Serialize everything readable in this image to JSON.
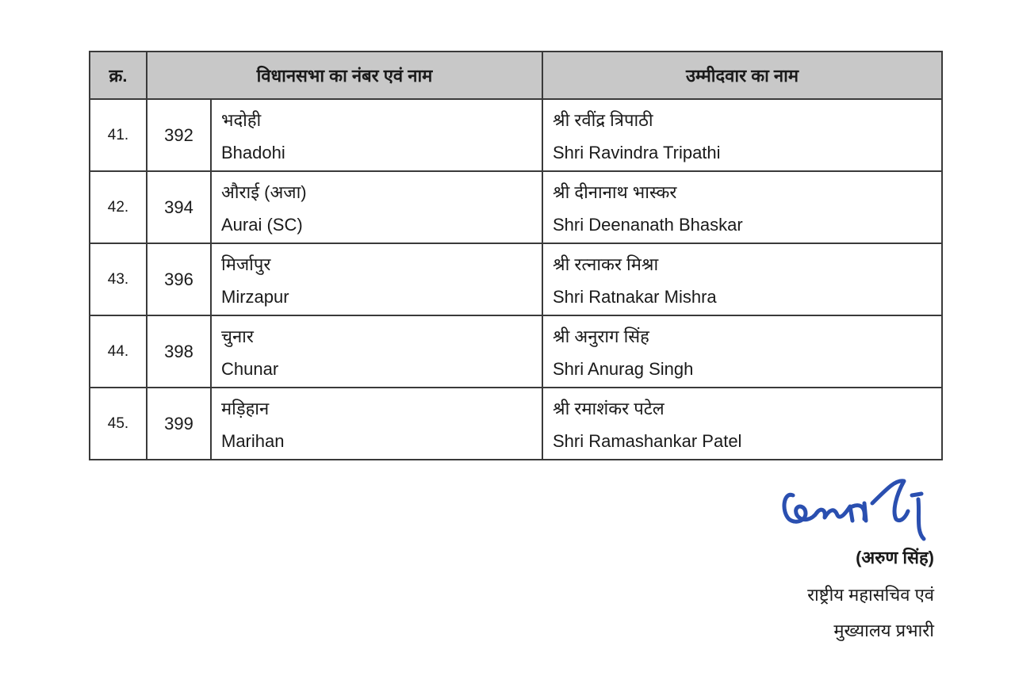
{
  "table": {
    "headers": [
      "क्र.",
      "विधानसभा का नंबर एवं नाम",
      "उम्मीदवार का नाम"
    ],
    "rows": [
      {
        "sn": "41.",
        "no": "392",
        "name_hi": "भदोही",
        "name_en": "Bhadohi",
        "cand_hi": "श्री रवींद्र त्रिपाठी",
        "cand_en": "Shri Ravindra Tripathi"
      },
      {
        "sn": "42.",
        "no": "394",
        "name_hi": "औराई (अजा)",
        "name_en": "Aurai (SC)",
        "cand_hi": "श्री दीनानाथ भास्कर",
        "cand_en": "Shri Deenanath Bhaskar"
      },
      {
        "sn": "43.",
        "no": "396",
        "name_hi": "मिर्जापुर",
        "name_en": "Mirzapur",
        "cand_hi": "श्री रत्नाकर मिश्रा",
        "cand_en": "Shri Ratnakar Mishra"
      },
      {
        "sn": "44.",
        "no": "398",
        "name_hi": "चुनार",
        "name_en": "Chunar",
        "cand_hi": "श्री अनुराग सिंह",
        "cand_en": "Shri Anurag Singh"
      },
      {
        "sn": "45.",
        "no": "399",
        "name_hi": "मड़िहान",
        "name_en": "Marihan",
        "cand_hi": "श्री रमाशंकर पटेल",
        "cand_en": "Shri Ramashankar Patel"
      }
    ]
  },
  "signature": {
    "signature_text": "अरुण सिंह",
    "ink_color": "#2a4fb0",
    "name": "(अरुण सिंह)",
    "designation_1": "राष्ट्रीय महासचिव एवं",
    "designation_2": "मुख्यालय प्रभारी"
  }
}
